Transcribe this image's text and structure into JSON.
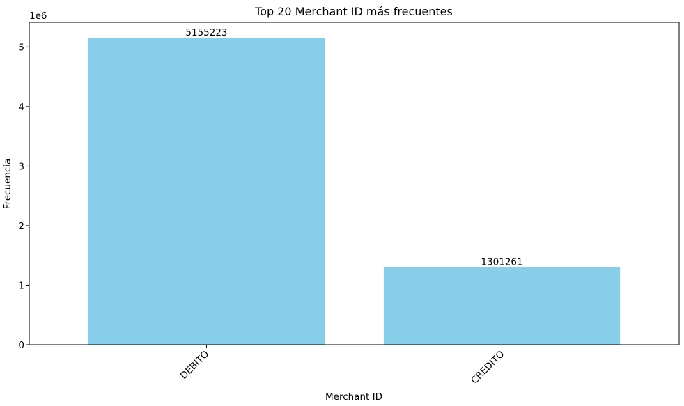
{
  "chart_data": {
    "type": "bar",
    "title": "Top 20 Merchant ID más frecuentes",
    "xlabel": "Merchant ID",
    "ylabel": "Frecuencia",
    "y_offset_label": "1e6",
    "categories": [
      "DEBITO",
      "CREDITO"
    ],
    "values": [
      5155223,
      1301261
    ],
    "data_labels": [
      "5155223",
      "1301261"
    ],
    "y_ticks": [
      0,
      1000000,
      2000000,
      3000000,
      4000000,
      5000000
    ],
    "y_tick_labels": [
      "0",
      "1",
      "2",
      "3",
      "4",
      "5"
    ],
    "ylim": [
      0,
      5412984
    ],
    "bar_color": "#87ceeb",
    "grid": false,
    "legend": false
  }
}
